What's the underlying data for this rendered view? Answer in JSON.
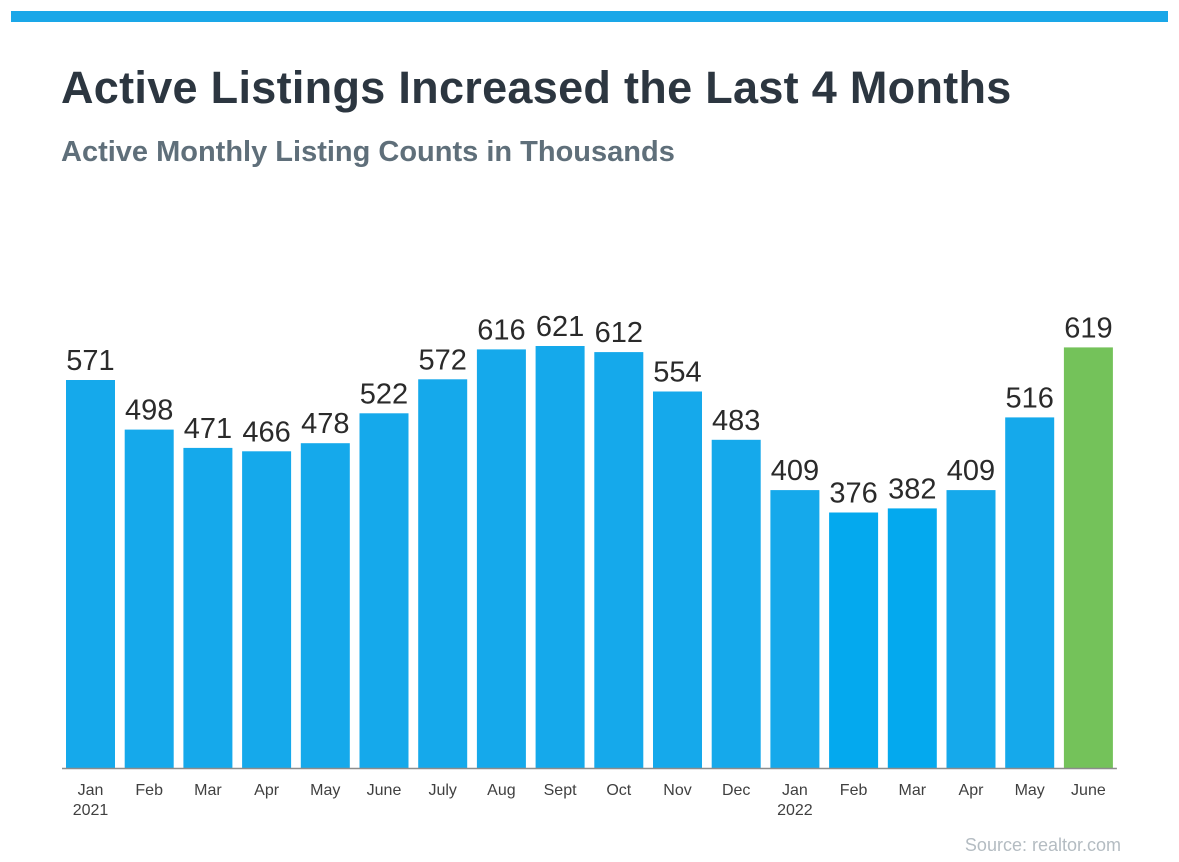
{
  "header": {
    "title": "Active Listings Increased the Last 4 Months",
    "subtitle": "Active Monthly Listing Counts in Thousands"
  },
  "footer": {
    "source": "Source: realtor.com"
  },
  "colors": {
    "accent_bar": "#1aa7e8",
    "bar_default": "#15a9eb",
    "bar_2022_early": "#04a9ee",
    "bar_highlight": "#74c25a",
    "title": "#2c3640",
    "subtitle": "#5f6f7a",
    "source": "#b4bcc2"
  },
  "chart_data": {
    "type": "bar",
    "title": "Active Listings Increased the Last 4 Months",
    "subtitle": "Active Monthly Listing Counts in Thousands",
    "xlabel": "",
    "ylabel": "",
    "ylim": [
      0,
      621
    ],
    "grid": false,
    "categories": [
      "Jan",
      "Feb",
      "Mar",
      "Apr",
      "May",
      "June",
      "July",
      "Aug",
      "Sept",
      "Oct",
      "Nov",
      "Dec",
      "Jan",
      "Feb",
      "Mar",
      "Apr",
      "May",
      "June"
    ],
    "year_labels": [
      "2021",
      "",
      "",
      "",
      "",
      "",
      "",
      "",
      "",
      "",
      "",
      "",
      "2022",
      "",
      "",
      "",
      "",
      ""
    ],
    "values": [
      571,
      498,
      471,
      466,
      478,
      522,
      572,
      616,
      621,
      612,
      554,
      483,
      409,
      376,
      382,
      409,
      516,
      619
    ],
    "highlight_index": 17,
    "data_labels": true,
    "source": "Source: realtor.com"
  }
}
